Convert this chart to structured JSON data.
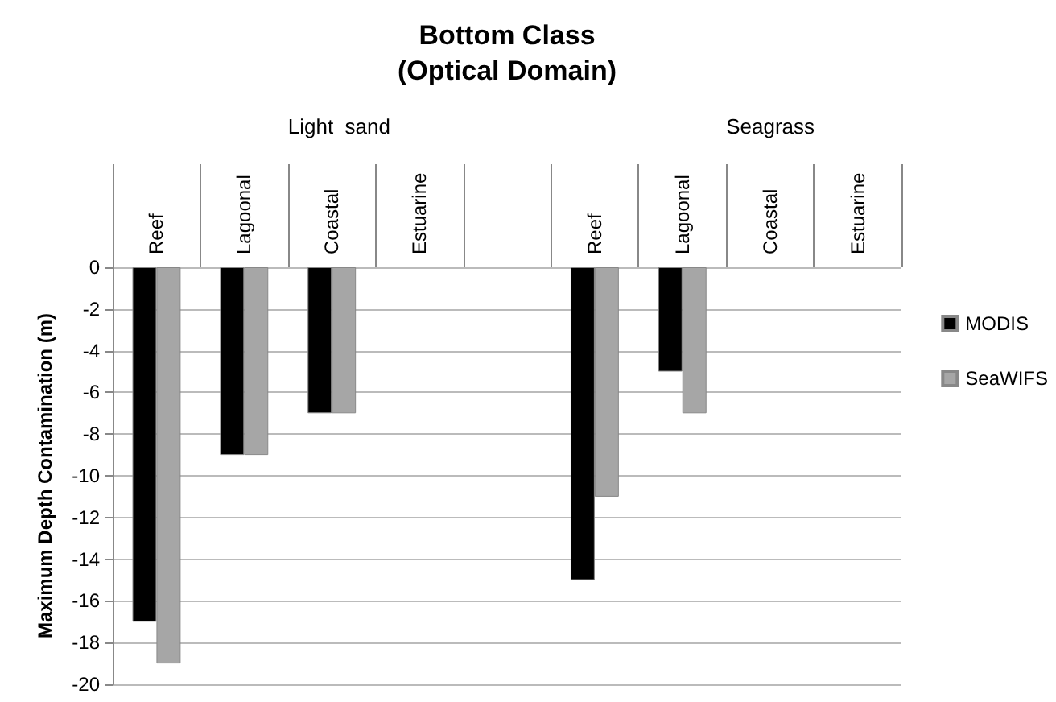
{
  "chart_data": {
    "type": "bar",
    "title": "Bottom Class\n(Optical Domain)",
    "ylabel": "Maximum Depth Contamination (m)",
    "categories": [
      "Reef",
      "Lagoonal",
      "Coastal",
      "Estuarine",
      null,
      "Reef",
      "Lagoonal",
      "Coastal",
      "Estuarine"
    ],
    "series": [
      {
        "name": "MODIS",
        "color": "#000000",
        "values": [
          -17,
          -9,
          -7,
          null,
          null,
          -15,
          -5,
          null,
          null
        ]
      },
      {
        "name": "SeaWIFS",
        "color": "#a6a6a6",
        "values": [
          -19,
          -9,
          -7,
          null,
          null,
          -11,
          -7,
          null,
          null
        ]
      }
    ],
    "annotations": [
      "Light  sand",
      "Seagrass"
    ],
    "ylim": [
      -20,
      0
    ],
    "yticks": [
      -20,
      -18,
      -16,
      -14,
      -12,
      -10,
      -8,
      -6,
      -4,
      -2,
      0
    ],
    "grid": "y",
    "legend": "right"
  }
}
